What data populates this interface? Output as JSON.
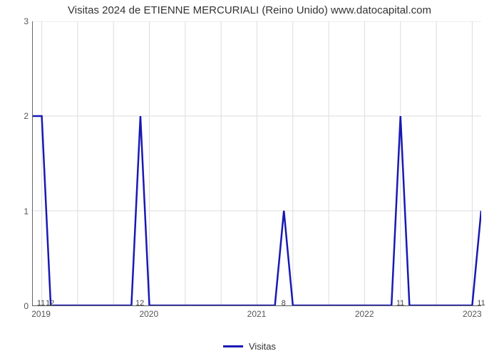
{
  "chart": {
    "type": "line",
    "title": "Visitas 2024 de ETIENNE MERCURIALI (Reino Unido) www.datocapital.com",
    "x": {
      "min": 0,
      "max": 50,
      "ticks": [
        {
          "pos": 1,
          "label": "2019"
        },
        {
          "pos": 13,
          "label": "2020"
        },
        {
          "pos": 25,
          "label": "2021"
        },
        {
          "pos": 37,
          "label": "2022"
        },
        {
          "pos": 49,
          "label": "2023"
        }
      ],
      "gridlines": [
        1,
        5,
        9,
        13,
        17,
        21,
        25,
        29,
        33,
        37,
        41,
        45,
        49
      ]
    },
    "y": {
      "min": 0,
      "max": 3,
      "ticks": [
        0,
        1,
        2,
        3
      ],
      "gridlines": [
        0,
        1,
        2,
        3
      ]
    },
    "series": {
      "color": "#1919b3",
      "points": [
        {
          "x": 0,
          "y": 2
        },
        {
          "x": 1,
          "y": 2,
          "label": "11"
        },
        {
          "x": 2,
          "y": 0,
          "label": "12"
        },
        {
          "x": 11,
          "y": 0
        },
        {
          "x": 12,
          "y": 2,
          "label": "12"
        },
        {
          "x": 13,
          "y": 0
        },
        {
          "x": 27,
          "y": 0
        },
        {
          "x": 28,
          "y": 1,
          "label": "8"
        },
        {
          "x": 29,
          "y": 0
        },
        {
          "x": 40,
          "y": 0
        },
        {
          "x": 41,
          "y": 2,
          "label": "11"
        },
        {
          "x": 42,
          "y": 0
        },
        {
          "x": 49,
          "y": 0
        },
        {
          "x": 50,
          "y": 1,
          "label": "11"
        }
      ]
    },
    "legend_label": "Visitas",
    "colors": {
      "grid": "#dddddd",
      "axis": "#666666",
      "bg": "#ffffff",
      "text": "#555555"
    }
  }
}
